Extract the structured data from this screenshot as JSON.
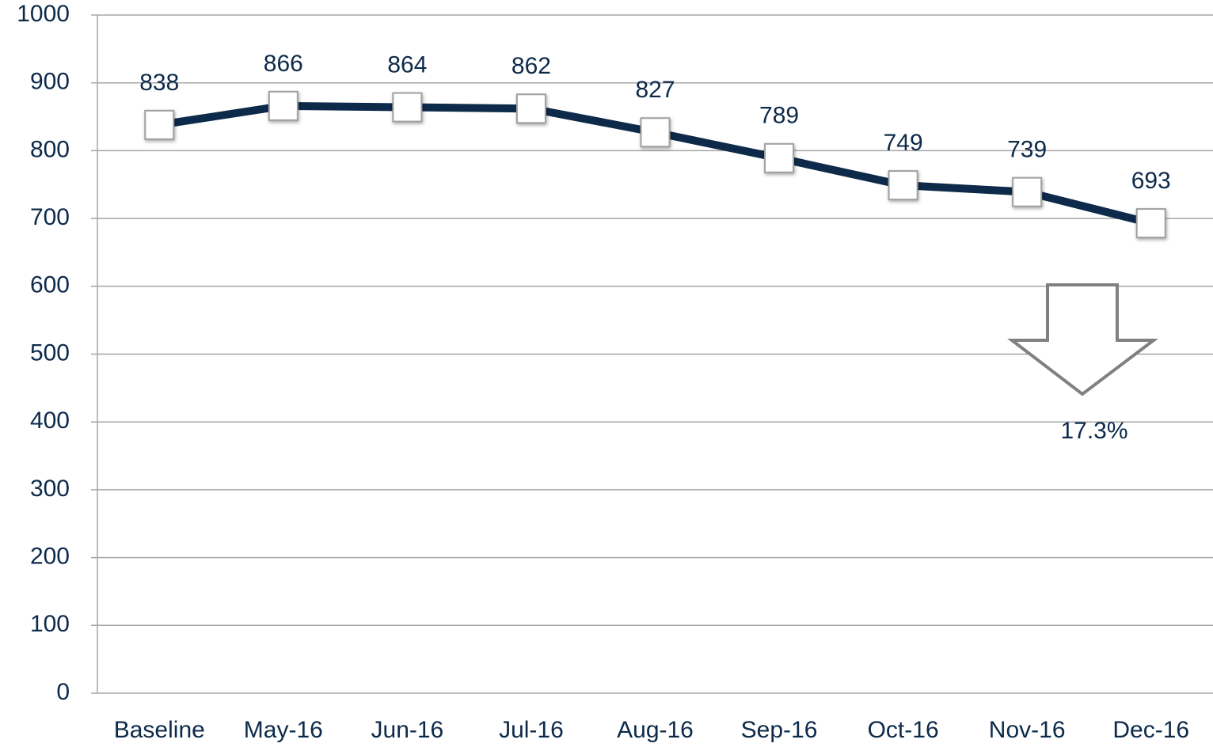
{
  "chart_data": {
    "type": "line",
    "categories": [
      "Baseline",
      "May-16",
      "Jun-16",
      "Jul-16",
      "Aug-16",
      "Sep-16",
      "Oct-16",
      "Nov-16",
      "Dec-16"
    ],
    "series": [
      {
        "color": "#0d2a4a",
        "values": [
          838,
          866,
          864,
          862,
          827,
          789,
          749,
          739,
          693
        ]
      }
    ],
    "ylim": [
      0,
      1000
    ],
    "yticks": [
      0,
      100,
      200,
      300,
      400,
      500,
      600,
      700,
      800,
      900,
      1000
    ],
    "grid": true,
    "annotation": "17.3%"
  }
}
